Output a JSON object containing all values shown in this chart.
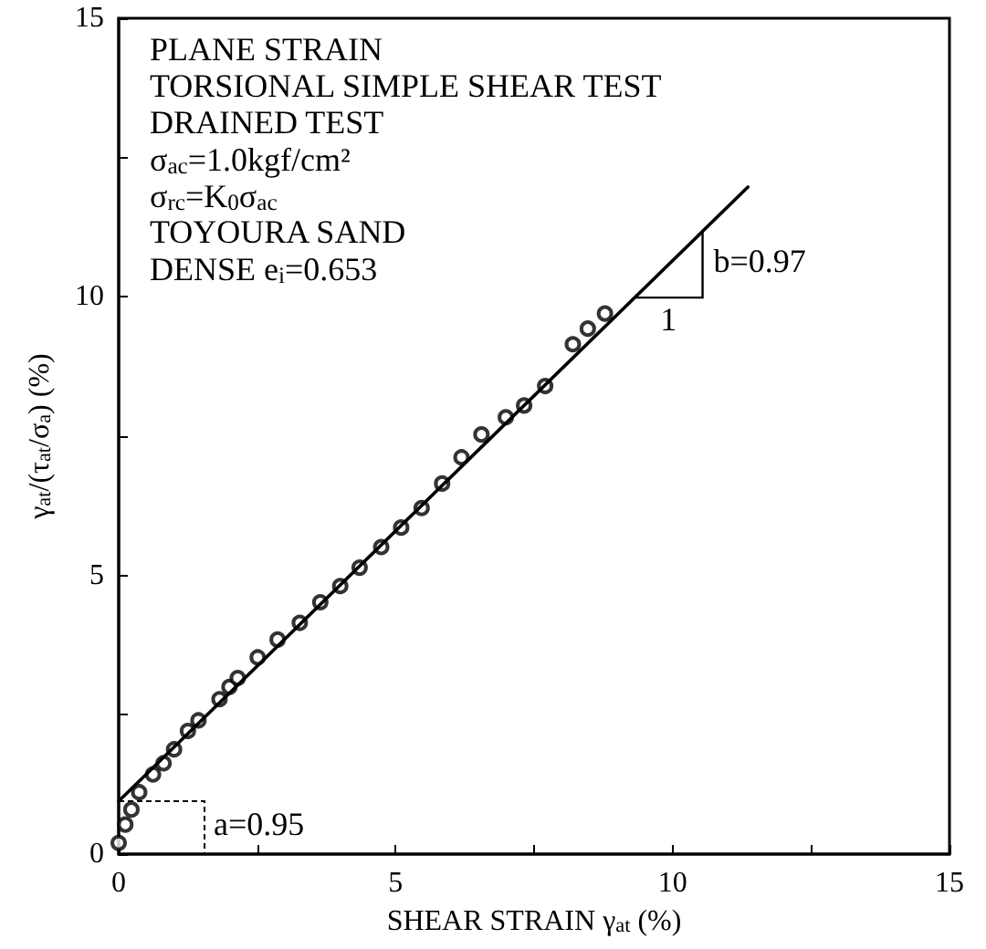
{
  "chart_data": {
    "type": "scatter",
    "xlabel": "SHEAR STRAIN γ$_{at}$ (%)",
    "ylabel": "γ$_{at}$/(τ$_{at}$/σ$_{a}$) (%)",
    "xlim": [
      0,
      15
    ],
    "ylim": [
      0,
      15
    ],
    "xticks": [
      0,
      {
        "value": 2.5,
        "label": null
      },
      5,
      {
        "value": 7.5,
        "label": null
      },
      10,
      {
        "value": 12.5,
        "label": null
      },
      15
    ],
    "yticks": [
      0,
      {
        "value": 2.5,
        "label": null
      },
      5,
      {
        "value": 7.5,
        "label": null
      },
      10,
      {
        "value": 12.5,
        "label": null
      },
      15
    ],
    "grid": false,
    "marker": "circle",
    "series": [
      {
        "color": "#000000",
        "x": [
          0,
          0.12,
          0.23,
          0.37,
          0.62,
          0.81,
          1.0,
          1.25,
          1.44,
          1.82,
          2.0,
          2.15,
          2.51,
          2.87,
          3.27,
          3.64,
          4.0,
          4.35,
          4.74,
          5.1,
          5.47,
          5.84,
          6.19,
          6.55,
          6.99,
          7.32,
          7.7,
          8.2,
          8.47,
          8.78
        ],
        "values": [
          0.2,
          0.53,
          0.8,
          1.11,
          1.43,
          1.63,
          1.88,
          2.21,
          2.4,
          2.78,
          3.0,
          3.16,
          3.53,
          3.85,
          4.15,
          4.52,
          4.81,
          5.14,
          5.51,
          5.86,
          6.21,
          6.65,
          7.12,
          7.53,
          7.84,
          8.05,
          8.4,
          9.15,
          9.43,
          9.7
        ]
      },
      {
        "type": "line",
        "color": "#000000",
        "marker": "none",
        "line_style": "solid",
        "x": [
          0,
          11.36
        ],
        "values": [
          0.95,
          11.97
        ]
      }
    ],
    "annotations": [
      "PLANE STRAIN",
      "TORSIONAL SIMPLE SHEAR TEST",
      "DRAINED TEST",
      "σ$_{ac}$=1.0kgf/cm²",
      "σ$_{rc}$=K$_{0}$σ$_{ac}$",
      "TOYOURA SAND",
      "DENSE e$_{i}$=0.653",
      "b=0.97",
      "1",
      {
        "text": "a=0.95",
        "x": 0,
        "y": 0.95
      }
    ]
  }
}
